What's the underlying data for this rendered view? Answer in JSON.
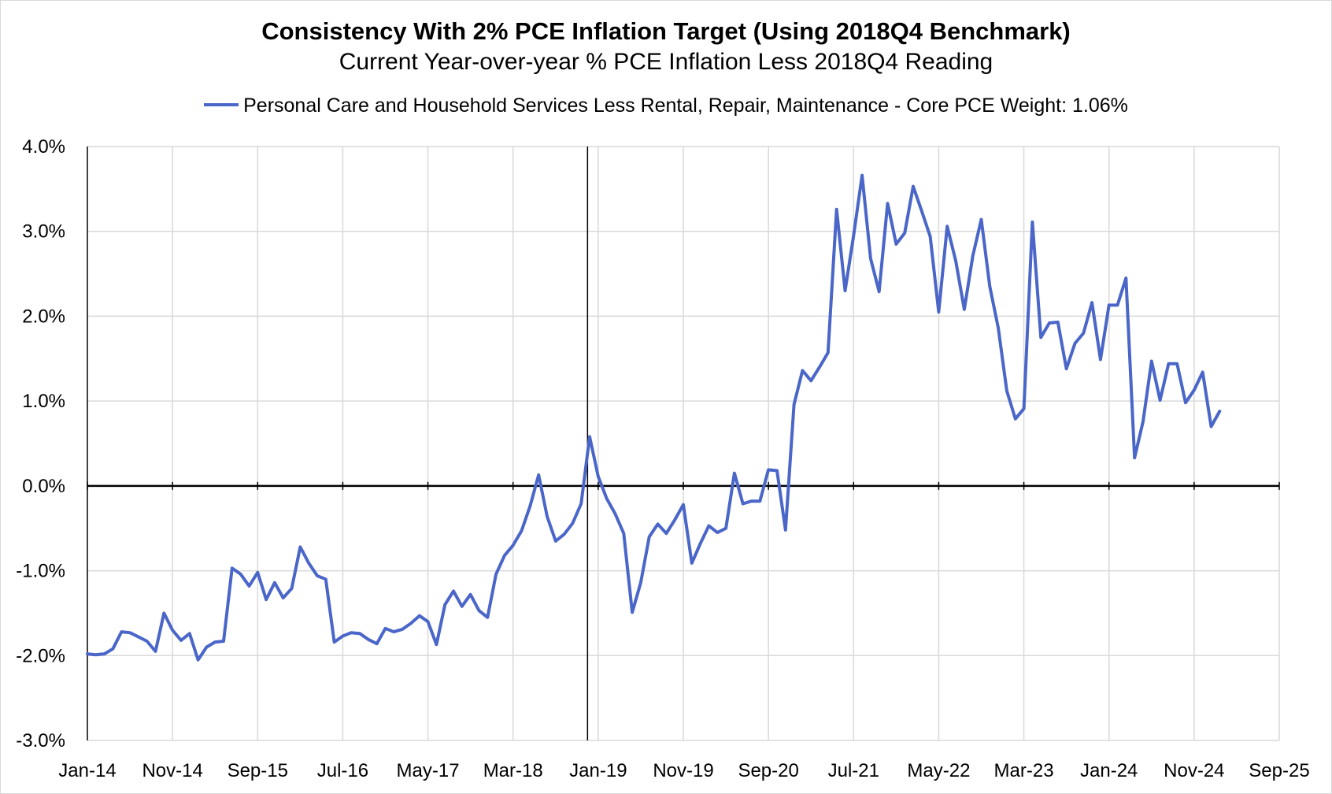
{
  "chart_data": {
    "type": "line",
    "title": "Consistency With 2% PCE Inflation Target (Using 2018Q4 Benchmark)",
    "subtitle": "Current Year-over-year % PCE Inflation Less 2018Q4 Reading",
    "xlabel": "",
    "ylabel": "",
    "ylim": [
      -3.0,
      4.0
    ],
    "yticks": [
      "4.0%",
      "3.0%",
      "2.0%",
      "1.0%",
      "0.0%",
      "-1.0%",
      "-2.0%",
      "-3.0%"
    ],
    "ytick_values": [
      4,
      3,
      2,
      1,
      0,
      -1,
      -2,
      -3
    ],
    "xticks": [
      "Jan-14",
      "Nov-14",
      "Sep-15",
      "Jul-16",
      "May-17",
      "Mar-18",
      "Jan-19",
      "Nov-19",
      "Sep-20",
      "Jul-21",
      "May-22",
      "Mar-23",
      "Jan-24",
      "Nov-24",
      "Sep-25"
    ],
    "x_start": "Jan-14",
    "x_months_span": 140,
    "benchmark_marker": "2018Q4",
    "benchmark_month_index": 58,
    "grid": true,
    "legend_position": "top",
    "series": [
      {
        "name": "Personal Care and Household Services Less Rental, Repair, Maintenance  - Core PCE Weight: 1.06%",
        "color": "#4a66c8",
        "start_month_index": 0,
        "values": [
          -1.98,
          -1.99,
          -1.98,
          -1.92,
          -1.72,
          -1.73,
          -1.78,
          -1.83,
          -1.95,
          -1.5,
          -1.7,
          -1.82,
          -1.74,
          -2.05,
          -1.9,
          -1.84,
          -1.83,
          -0.97,
          -1.04,
          -1.18,
          -1.02,
          -1.34,
          -1.14,
          -1.32,
          -1.21,
          -0.72,
          -0.91,
          -1.06,
          -1.1,
          -1.84,
          -1.77,
          -1.73,
          -1.74,
          -1.81,
          -1.86,
          -1.68,
          -1.72,
          -1.69,
          -1.62,
          -1.53,
          -1.6,
          -1.87,
          -1.4,
          -1.24,
          -1.42,
          -1.28,
          -1.47,
          -1.55,
          -1.04,
          -0.82,
          -0.7,
          -0.53,
          -0.24,
          0.13,
          -0.36,
          -0.65,
          -0.57,
          -0.44,
          -0.21,
          0.58,
          0.11,
          -0.15,
          -0.33,
          -0.56,
          -1.49,
          -1.14,
          -0.6,
          -0.45,
          -0.56,
          -0.4,
          -0.22,
          -0.91,
          -0.68,
          -0.47,
          -0.55,
          -0.5,
          0.15,
          -0.21,
          -0.18,
          -0.18,
          0.19,
          0.18,
          -0.52,
          0.96,
          1.36,
          1.24,
          1.4,
          1.57,
          3.26,
          2.3,
          2.95,
          3.66,
          2.68,
          2.29,
          3.33,
          2.85,
          2.98,
          3.53,
          3.24,
          2.94,
          2.05,
          3.06,
          2.65,
          2.08,
          2.71,
          3.14,
          2.35,
          1.86,
          1.12,
          0.79,
          0.91,
          3.11,
          1.75,
          1.92,
          1.93,
          1.38,
          1.68,
          1.8,
          2.16,
          1.49,
          2.13,
          2.13,
          2.45,
          0.33,
          0.76,
          1.47,
          1.01,
          1.44,
          1.44,
          0.98,
          1.13,
          1.34,
          0.7,
          0.88
        ]
      }
    ]
  }
}
